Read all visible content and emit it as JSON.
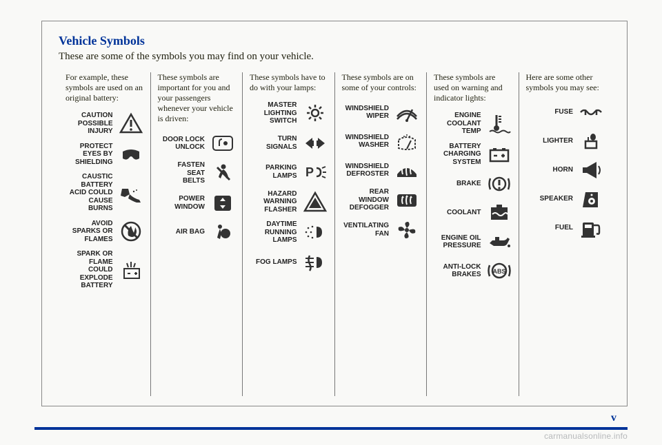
{
  "title": "Vehicle Symbols",
  "subtitle": "These are some of the symbols you may find on your vehicle.",
  "page_marker": "v",
  "watermark": "carmanualsonline.info",
  "colors": {
    "heading": "#003399",
    "text": "#221",
    "icon": "#333333",
    "divider": "#777",
    "frame": "#888",
    "bg": "#f9f9f7"
  },
  "columns": [
    {
      "intro": "For example, these symbols are used on an original battery:",
      "items": [
        {
          "label": "CAUTION\nPOSSIBLE\nINJURY",
          "icon": "triangle-bang"
        },
        {
          "label": "PROTECT\nEYES BY\nSHIELDING",
          "icon": "goggles"
        },
        {
          "label": "CAUSTIC\nBATTERY\nACID COULD\nCAUSE\nBURNS",
          "icon": "acid-hand"
        },
        {
          "label": "AVOID\nSPARKS OR\nFLAMES",
          "icon": "no-flame"
        },
        {
          "label": "SPARK OR\nFLAME\nCOULD\nEXPLODE\nBATTERY",
          "icon": "explode-battery"
        }
      ]
    },
    {
      "intro": "These symbols are important for you and your passengers whenever your vehicle is driven:",
      "items": [
        {
          "label": "DOOR LOCK\nUNLOCK",
          "icon": "door-lock"
        },
        {
          "label": "FASTEN\nSEAT\nBELTS",
          "icon": "seat-belt"
        },
        {
          "label": "POWER\nWINDOW",
          "icon": "power-window"
        },
        {
          "label": "AIR BAG",
          "icon": "airbag"
        }
      ]
    },
    {
      "intro": "These symbols have to do with your lamps:",
      "items": [
        {
          "label": "MASTER\nLIGHTING\nSWITCH",
          "icon": "master-light"
        },
        {
          "label": "TURN\nSIGNALS",
          "icon": "turn-signals"
        },
        {
          "label": "PARKING\nLAMPS",
          "icon": "parking-lamps"
        },
        {
          "label": "HAZARD\nWARNING\nFLASHER",
          "icon": "hazard"
        },
        {
          "label": "DAYTIME\nRUNNING\nLAMPS",
          "icon": "drl"
        },
        {
          "label": "FOG LAMPS",
          "icon": "fog-lamps"
        }
      ]
    },
    {
      "intro": "These symbols are on some of your controls:",
      "items": [
        {
          "label": "WINDSHIELD\nWIPER",
          "icon": "wiper"
        },
        {
          "label": "WINDSHIELD\nWASHER",
          "icon": "washer"
        },
        {
          "label": "WINDSHIELD\nDEFROSTER",
          "icon": "front-defrost"
        },
        {
          "label": "REAR\nWINDOW\nDEFOGGER",
          "icon": "rear-defrost"
        },
        {
          "label": "VENTILATING\nFAN",
          "icon": "fan"
        }
      ]
    },
    {
      "intro": "These symbols are used on warning and indicator lights:",
      "items": [
        {
          "label": "ENGINE\nCOOLANT\nTEMP",
          "icon": "coolant-temp"
        },
        {
          "label": "BATTERY\nCHARGING\nSYSTEM",
          "icon": "battery"
        },
        {
          "label": "BRAKE",
          "icon": "brake"
        },
        {
          "label": "COOLANT",
          "icon": "coolant"
        },
        {
          "label": "ENGINE OIL\nPRESSURE",
          "icon": "oil"
        },
        {
          "label": "ANTI-LOCK\nBRAKES",
          "icon": "abs"
        }
      ]
    },
    {
      "intro": "Here are some other symbols you may see:",
      "items": [
        {
          "label": "FUSE",
          "icon": "fuse"
        },
        {
          "label": "LIGHTER",
          "icon": "lighter"
        },
        {
          "label": "HORN",
          "icon": "horn"
        },
        {
          "label": "SPEAKER",
          "icon": "speaker"
        },
        {
          "label": "FUEL",
          "icon": "fuel"
        }
      ]
    }
  ],
  "icons_svg": {
    "triangle-bang": "<path d='M18 3 L33 29 L3 29 Z' fill='none' stroke='#333' stroke-width='2.5'/><line x1='18' y1='11' x2='18' y2='21' stroke='#333' stroke-width='3'/><circle cx='18' cy='25' r='1.8' fill='#333'/>",
    "goggles": "<path d='M6 12 Q18 6 30 12 L30 22 Q24 26 20 20 Q18 18 16 20 Q12 26 6 22 Z' fill='#333'/>",
    "acid-hand": "<path d='M5 10 L14 10 L16 18 L9 22 L3 20 Z' fill='#333'/><path d='M16 18 Q22 24 30 26 L32 30 L26 30 Q20 28 14 24' fill='#333'/><circle cx='22' cy='14' r='1.2' fill='#333'/><circle cx='26' cy='12' r='1' fill='#333'/>",
    "no-flame": "<circle cx='18' cy='16' r='13' fill='none' stroke='#333' stroke-width='2.5'/><path d='M14 22 Q12 14 18 8 Q20 14 22 18 Q24 12 24 10 Q28 16 24 22 Q20 26 14 22' fill='#333'/><line x1='9' y1='7' x2='27' y2='25' stroke='#333' stroke-width='3'/>",
    "explode-battery": "<rect x='8' y='14' width='22' height='14' fill='none' stroke='#333' stroke-width='2'/><line x1='13' y1='21' x2='17' y2='21' stroke='#333' stroke-width='2'/><line x1='23' y1='21' x2='27' y2='21' stroke='#333' stroke-width='2'/><line x1='25' y1='19' x2='25' y2='23' stroke='#333' stroke-width='2'/><path d='M12 6 L14 12 M18 4 L18 12 M24 6 L22 12' stroke='#333' stroke-width='2'/>",
    "door-lock": "<rect x='4' y='6' width='28' height='20' rx='4' fill='none' stroke='#333' stroke-width='2'/><circle cx='22' cy='16' r='3' fill='#333'/><path d='M13 20 L13 14 Q13 10 17 10' fill='none' stroke='#333' stroke-width='2'/>",
    "seat-belt": "<circle cx='19' cy='7' r='3.5' fill='#333'/><path d='M19 11 Q14 14 12 22 L15 24 Q17 18 19 16 Q21 18 23 24 L26 22 Q24 14 19 11' fill='#333'/><line x1='10' y1='8' x2='28' y2='26' stroke='#333' stroke-width='3'/>",
    "power-window": "<rect x='6' y='5' width='24' height='22' rx='3' fill='#333'/><path d='M18 8 L14 13 L22 13 Z' fill='#f9f9f7'/><path d='M18 24 L14 19 L22 19 Z' fill='#f9f9f7'/>",
    "airbag": "<circle cx='14' cy='8' r='3' fill='#333'/><circle cx='22' cy='18' r='7' fill='#333'/><path d='M14 11 Q12 16 10 24 L14 26 L16 18' fill='#333'/>",
    "master-light": "<circle cx='18' cy='16' r='5' fill='none' stroke='#333' stroke-width='2.5'/><g stroke='#333' stroke-width='2.5'><line x1='18' y1='4' x2='18' y2='8'/><line x1='18' y1='24' x2='18' y2='28'/><line x1='6' y1='16' x2='10' y2='16'/><line x1='26' y1='16' x2='30' y2='16'/><line x1='9' y1='7' x2='12' y2='10'/><line x1='24' y1='22' x2='27' y2='25'/><line x1='27' y1='7' x2='24' y2='10'/><line x1='12' y1='22' x2='9' y2='25'/></g>",
    "turn-signals": "<path d='M4 16 L14 8 L14 12 L16 12 L16 20 L14 20 L14 24 Z' fill='#333'/><path d='M32 16 L22 8 L22 12 L20 12 L20 20 L22 20 L22 24 Z' fill='#333'/>",
    "parking-lamps": "<text x='4' y='22' font-family='Arial' font-size='18' font-weight='bold' fill='#333'>P</text><path d='M20 10 Q26 10 26 16 Q26 22 20 22' fill='none' stroke='#333' stroke-width='2.5'/><line x1='28' y1='10' x2='33' y2='8' stroke='#333' stroke-width='2'/><line x1='29' y1='16' x2='34' y2='16' stroke='#333' stroke-width='2'/><line x1='28' y1='22' x2='33' y2='24' stroke='#333' stroke-width='2'/>",
    "hazard": "<path d='M18 3 L33 29 L3 29 Z' fill='none' stroke='#333' stroke-width='2.5'/><path d='M18 10 L27 25 L9 25 Z' fill='#333'/>",
    "drl": "<path d='M20 8 Q28 8 28 16 Q28 24 20 24 Z' fill='#333'/><circle cx='8' cy='10' r='1.3' fill='#333'/><circle cx='5' cy='16' r='1.3' fill='#333'/><circle cx='8' cy='22' r='1.3' fill='#333'/><circle cx='14' cy='8' r='1.3' fill='#333'/><circle cx='12' cy='16' r='1.3' fill='#333'/><circle cx='14' cy='24' r='1.3' fill='#333'/>",
    "fog-lamps": "<path d='M20 8 Q28 8 28 16 Q28 24 20 24 Z' fill='#333'/><g stroke='#333' stroke-width='2'><line x1='4' y1='10' x2='16' y2='10'/><line x1='4' y1='16' x2='16' y2='16'/><line x1='4' y1='22' x2='16' y2='22'/></g><path d='M10 6 Q7 12 10 18 Q13 24 10 28' fill='none' stroke='#333' stroke-width='2.5'/>",
    "wiper": "<path d='M4 22 Q18 6 32 22' fill='none' stroke='#333' stroke-width='2.5'/><path d='M4 26 Q18 10 32 26' fill='none' stroke='#333' stroke-width='2.5'/><line x1='18' y1='28' x2='26' y2='12' stroke='#333' stroke-width='2.5'/><circle cx='18' cy='28' r='2' fill='#333'/>",
    "washer": "<path d='M6 14 Q18 6 30 14 L30 26 Q18 30 6 26 Z' fill='none' stroke='#333' stroke-width='2' stroke-dasharray='3,2'/><line x1='18' y1='27' x2='24' y2='15' stroke='#333' stroke-width='2'/><circle cx='14' cy='9' r='1' fill='#333'/><circle cx='18' cy='7' r='1' fill='#333'/><circle cx='22' cy='9' r='1' fill='#333'/>",
    "front-defrost": "<path d='M4 22 Q18 4 32 22 L32 26 L4 26 Z' fill='#333'/><g stroke='#f9f9f7' stroke-width='2' fill='none'><path d='M12 10 Q10 16 12 22'/><path d='M18 8 Q16 16 18 24'/><path d='M24 10 Q22 16 24 22'/></g><path d='M12 8 L10 11 L14 11 Z M18 6 L16 9 L20 9 Z M24 8 L22 11 L26 11 Z' fill='#f9f9f7'/>",
    "rear-defrost": "<rect x='4' y='8' width='28' height='18' rx='3' fill='#333'/><g stroke='#f9f9f7' stroke-width='2' fill='none'><path d='M12 12 Q10 17 12 22'/><path d='M18 11 Q16 17 18 23'/><path d='M24 12 Q22 17 24 22'/></g><path d='M12 10 L10 13 L14 13 Z M18 9 L16 12 L20 12 Z M24 10 L22 13 L26 13 Z' fill='#f9f9f7'/>",
    "fan": "<circle cx='18' cy='16' r='3' fill='#333'/><path d='M18 13 Q12 4 20 4 Q24 8 18 13' fill='#333'/><path d='M21 16 Q32 12 30 20 Q24 23 21 16' fill='#333'/><path d='M18 19 Q24 28 16 28 Q12 24 18 19' fill='#333'/><path d='M15 16 Q4 20 6 12 Q12 9 15 16' fill='#333'/>",
    "coolant-temp": "<line x1='14' y1='4' x2='14' y2='20' stroke='#333' stroke-width='3'/><circle cx='14' cy='23' r='4' fill='#333'/><line x1='17' y1='6' x2='21' y2='6' stroke='#333' stroke-width='2'/><line x1='17' y1='10' x2='21' y2='10' stroke='#333' stroke-width='2'/><line x1='17' y1='14' x2='21' y2='14' stroke='#333' stroke-width='2'/><path d='M4 28 Q8 25 12 28 Q16 31 20 28 Q24 25 28 28 Q32 31 34 28' fill='none' stroke='#333' stroke-width='2'/>",
    "battery": "<rect x='5' y='10' width='26' height='16' fill='none' stroke='#333' stroke-width='2.5'/><rect x='9' y='7' width='5' height='3' fill='#333'/><rect x='22' y='7' width='5' height='3' fill='#333'/><line x1='10' y1='18' x2='15' y2='18' stroke='#333' stroke-width='2.5'/><line x1='21' y1='18' x2='26' y2='18' stroke='#333' stroke-width='2.5'/><line x1='23.5' y1='15.5' x2='23.5' y2='20.5' stroke='#333' stroke-width='2.5'/>",
    "brake": "<circle cx='18' cy='16' r='9' fill='none' stroke='#333' stroke-width='2.5'/><path d='M5 8 Q2 16 5 24' fill='none' stroke='#333' stroke-width='2.5'/><path d='M31 8 Q34 16 31 24' fill='none' stroke='#333' stroke-width='2.5'/><line x1='18' y1='10' x2='18' y2='18' stroke='#333' stroke-width='3'/><circle cx='18' cy='22' r='1.6' fill='#333'/>",
    "coolant": "<rect x='6' y='8' width='24' height='18' fill='#333'/><path d='M8 18 Q12 14 16 18 Q20 22 24 18 Q28 14 30 18' fill='none' stroke='#f9f9f7' stroke-width='2'/><rect x='14' y='4' width='8' height='4' fill='#333'/>",
    "oil": "<path d='M4 18 L8 14 L24 14 Q28 14 30 10 L33 12 L30 18 Q28 22 24 22 L10 22 Z' fill='#333'/><rect x='12' y='9' width='6' height='5' fill='#333'/><circle cx='32' cy='22' r='2' fill='#333'/>",
    "abs": "<circle cx='18' cy='16' r='10' fill='none' stroke='#333' stroke-width='2.5'/><path d='M4 8 Q1 16 4 24' fill='none' stroke='#333' stroke-width='2.5'/><path d='M32 8 Q35 16 32 24' fill='none' stroke='#333' stroke-width='2.5'/><text x='18' y='20' font-family='Arial' font-size='9' font-weight='bold' fill='#333' text-anchor='middle'>ABS</text>",
    "fuse": "<path d='M3 16 Q8 10 13 16 Q18 22 23 16 Q28 10 33 16' fill='none' stroke='#333' stroke-width='2.5'/><line x1='10' y1='12' x2='10' y2='20' stroke='#333' stroke-width='2.5'/><line x1='26' y1='12' x2='26' y2='20' stroke='#333' stroke-width='2.5'/>",
    "lighter": "<rect x='10' y='16' width='16' height='10' fill='none' stroke='#333' stroke-width='2.5'/><ellipse cx='21' cy='10' rx='4' ry='5' fill='#333'/><line x1='14' y1='16' x2='14' y2='10' stroke='#333' stroke-width='2'/>",
    "horn": "<path d='M6 12 L6 20 L12 20 L26 28 L26 4 L12 12 Z' fill='#333'/><path d='M29 10 Q33 16 29 22' fill='none' stroke='#333' stroke-width='2'/>",
    "speaker": "<rect x='10' y='6' width='18' height='22' fill='#333'/><path d='M6 28 L10 6 L10 28 Z' fill='#333'/><circle cx='19' cy='19' r='5' fill='#f9f9f7'/><circle cx='19' cy='19' r='2' fill='#333'/><circle cx='19' cy='10' r='1.5' fill='#f9f9f7'/>",
    "fuel": "<rect x='6' y='8' width='16' height='20' rx='2' fill='#333'/><rect x='9' y='11' width='10' height='5' fill='#f9f9f7'/><path d='M22 12 L28 12 Q30 12 30 16 L30 22 Q30 26 26 24' fill='none' stroke='#333' stroke-width='2.5'/><rect x='4' y='27' width='20' height='3' fill='#333'/>"
  }
}
